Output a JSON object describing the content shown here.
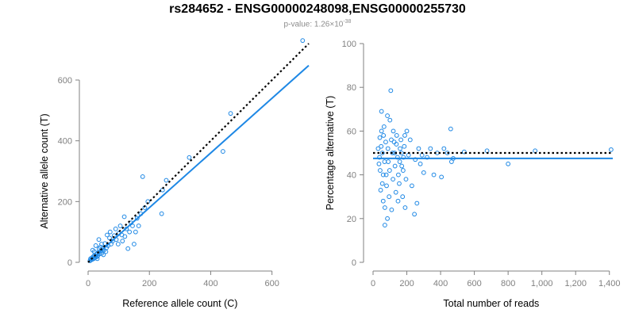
{
  "header": {
    "title": "rs284652 - ENSG00000248098,ENSG00000255730",
    "pvalue_prefix": "p-value: 1.26×10",
    "pvalue_exponent": "-38"
  },
  "colors": {
    "points": "#1e88e5",
    "fit": "#1e88e5",
    "reference": "#000000",
    "axis": "#808080"
  },
  "chart_data": [
    {
      "type": "scatter",
      "xlabel": "Reference allele count (C)",
      "ylabel": "Alternative allele count (T)",
      "xlim": [
        0,
        720
      ],
      "ylim": [
        0,
        720
      ],
      "xticks": [
        0,
        200,
        400,
        600
      ],
      "yticks": [
        0,
        200,
        400,
        600
      ],
      "fit_line": {
        "x": [
          0,
          720
        ],
        "y": [
          0,
          648
        ]
      },
      "reference_line": {
        "x": [
          0,
          720
        ],
        "y": [
          0,
          720
        ]
      },
      "points": [
        [
          700,
          730
        ],
        [
          465,
          490
        ],
        [
          440,
          365
        ],
        [
          330,
          345
        ],
        [
          255,
          270
        ],
        [
          243,
          238
        ],
        [
          240,
          160
        ],
        [
          178,
          282
        ],
        [
          195,
          200
        ],
        [
          185,
          180
        ],
        [
          172,
          160
        ],
        [
          160,
          145
        ],
        [
          150,
          60
        ],
        [
          130,
          45
        ],
        [
          118,
          150
        ],
        [
          145,
          120
        ],
        [
          105,
          120
        ],
        [
          100,
          95
        ],
        [
          92,
          75
        ],
        [
          85,
          88
        ],
        [
          80,
          70
        ],
        [
          75,
          60
        ],
        [
          70,
          80
        ],
        [
          65,
          55
        ],
        [
          60,
          48
        ],
        [
          55,
          62
        ],
        [
          52,
          40
        ],
        [
          48,
          45
        ],
        [
          45,
          30
        ],
        [
          42,
          38
        ],
        [
          40,
          50
        ],
        [
          38,
          28
        ],
        [
          35,
          34
        ],
        [
          32,
          22
        ],
        [
          30,
          30
        ],
        [
          28,
          18
        ],
        [
          26,
          26
        ],
        [
          24,
          20
        ],
        [
          22,
          15
        ],
        [
          20,
          22
        ],
        [
          18,
          12
        ],
        [
          16,
          18
        ],
        [
          14,
          10
        ],
        [
          12,
          14
        ],
        [
          10,
          8
        ],
        [
          8,
          12
        ],
        [
          6,
          5
        ],
        [
          15,
          40
        ],
        [
          25,
          55
        ],
        [
          35,
          75
        ],
        [
          110,
          90
        ],
        [
          125,
          110
        ],
        [
          135,
          100
        ],
        [
          140,
          130
        ],
        [
          155,
          100
        ],
        [
          165,
          120
        ],
        [
          90,
          110
        ],
        [
          98,
          60
        ],
        [
          112,
          70
        ],
        [
          120,
          85
        ],
        [
          72,
          100
        ],
        [
          62,
          90
        ],
        [
          58,
          35
        ],
        [
          50,
          25
        ],
        [
          44,
          60
        ],
        [
          36,
          45
        ],
        [
          30,
          12
        ],
        [
          20,
          35
        ]
      ]
    },
    {
      "type": "scatter",
      "xlabel": "Total number of reads",
      "ylabel": "Percentage alternative (T)",
      "xlim": [
        0,
        1420
      ],
      "ylim": [
        0,
        100
      ],
      "xticks": [
        0,
        200,
        400,
        600,
        800,
        1000,
        1200,
        1400
      ],
      "xtick_labels": [
        "0",
        "200",
        "400",
        "600",
        "800",
        "1,000",
        "1,200",
        "1,400"
      ],
      "yticks": [
        0,
        20,
        40,
        60,
        80,
        100
      ],
      "fit_line": {
        "x": [
          0,
          1420
        ],
        "y": [
          47.5,
          47.5
        ]
      },
      "reference_line": {
        "x": [
          0,
          1420
        ],
        "y": [
          50,
          50
        ]
      },
      "points": [
        [
          1410,
          51.5
        ],
        [
          960,
          51
        ],
        [
          800,
          45
        ],
        [
          675,
          51
        ],
        [
          540,
          50.5
        ],
        [
          475,
          47.5
        ],
        [
          465,
          46
        ],
        [
          460,
          61
        ],
        [
          440,
          50
        ],
        [
          405,
          39
        ],
        [
          360,
          40
        ],
        [
          340,
          52
        ],
        [
          300,
          41
        ],
        [
          280,
          45
        ],
        [
          260,
          27
        ],
        [
          245,
          22
        ],
        [
          230,
          35
        ],
        [
          220,
          56
        ],
        [
          200,
          60
        ],
        [
          190,
          25
        ],
        [
          180,
          48
        ],
        [
          175,
          30
        ],
        [
          160,
          52
        ],
        [
          150,
          40
        ],
        [
          140,
          58
        ],
        [
          130,
          44
        ],
        [
          125,
          55
        ],
        [
          115,
          50
        ],
        [
          105,
          78.5
        ],
        [
          100,
          65
        ],
        [
          95,
          30
        ],
        [
          90,
          46
        ],
        [
          85,
          67
        ],
        [
          80,
          35
        ],
        [
          75,
          55
        ],
        [
          70,
          25
        ],
        [
          65,
          62
        ],
        [
          60,
          40
        ],
        [
          55,
          50
        ],
        [
          50,
          69
        ],
        [
          45,
          33
        ],
        [
          40,
          57
        ],
        [
          35,
          45
        ],
        [
          30,
          52
        ],
        [
          70,
          17
        ],
        [
          85,
          20
        ],
        [
          110,
          24
        ],
        [
          120,
          60
        ],
        [
          135,
          32
        ],
        [
          145,
          48
        ],
        [
          155,
          36
        ],
        [
          165,
          56
        ],
        [
          170,
          44
        ],
        [
          185,
          53
        ],
        [
          195,
          38
        ],
        [
          210,
          49
        ],
        [
          60,
          28
        ],
        [
          50,
          60
        ],
        [
          42,
          42
        ],
        [
          38,
          48
        ],
        [
          48,
          53
        ],
        [
          55,
          36
        ],
        [
          62,
          58
        ],
        [
          68,
          46
        ],
        [
          78,
          40
        ],
        [
          88,
          52
        ],
        [
          98,
          42
        ],
        [
          108,
          56
        ],
        [
          118,
          38
        ],
        [
          128,
          50
        ],
        [
          138,
          54
        ],
        [
          148,
          28
        ],
        [
          158,
          46
        ],
        [
          168,
          50
        ],
        [
          178,
          42
        ],
        [
          188,
          58
        ],
        [
          250,
          47
        ],
        [
          270,
          52
        ],
        [
          290,
          49
        ],
        [
          320,
          48
        ],
        [
          380,
          50
        ],
        [
          420,
          52
        ]
      ]
    }
  ]
}
